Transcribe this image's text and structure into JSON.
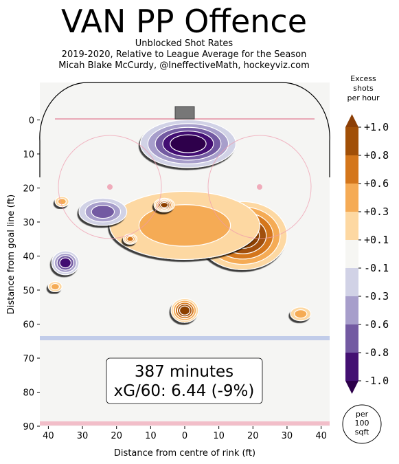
{
  "header": {
    "title": "VAN PP Offence",
    "subtitle1": "Unblocked Shot Rates",
    "subtitle2": "2019-2020, Relative to League Average for the Season",
    "subtitle3": "Micah Blake McCurdy, @IneffectiveMath, hockeyviz.com"
  },
  "annotation": {
    "minutes": "387 minutes",
    "xg": "xG/60: 6.44 (-9%)"
  },
  "colorbar": {
    "title_lines": [
      "Excess",
      "shots",
      "per hour"
    ],
    "tick_labels": [
      "+1.0",
      "+0.8",
      "+0.6",
      "+0.3",
      "+0.1",
      "-0.1",
      "-0.3",
      "-0.6",
      "-0.8",
      "-1.0"
    ],
    "colors": [
      "#8c3f06",
      "#a14f07",
      "#d4761b",
      "#f5ab55",
      "#fdd8a2",
      "#f6f6f3",
      "#d1d2e6",
      "#a79ecb",
      "#735aa2",
      "#431072",
      "#2d004b"
    ],
    "per_area_lines": [
      "per",
      "100",
      "sqft"
    ]
  },
  "chart_data": {
    "type": "heatmap",
    "xlabel": "Distance from centre of rink (ft)",
    "ylabel": "Distance from goal line (ft)",
    "xlim": [
      -42.5,
      42.5
    ],
    "ylim": [
      90,
      -11
    ],
    "xticks": [
      -40,
      -30,
      -20,
      -10,
      0,
      10,
      20,
      30,
      40
    ],
    "xtick_labels": [
      "40",
      "30",
      "20",
      "10",
      "0",
      "10",
      "20",
      "30",
      "40"
    ],
    "yticks": [
      0,
      10,
      20,
      30,
      40,
      50,
      60,
      70,
      80,
      90
    ],
    "ytick_labels": [
      "0",
      "10",
      "20",
      "30",
      "40",
      "50",
      "60",
      "70",
      "80",
      "90"
    ],
    "blobs": [
      {
        "x": 17,
        "y": 34,
        "rx": 13,
        "ry": 10,
        "value": 1.0
      },
      {
        "x": 0,
        "y": 31,
        "rx": 22,
        "ry": 10,
        "value": 0.3
      },
      {
        "x": -6,
        "y": 25,
        "rx": 3,
        "ry": 2,
        "value": 1.0
      },
      {
        "x": 0,
        "y": 56,
        "rx": 4,
        "ry": 3.5,
        "value": 1.0
      },
      {
        "x": -16,
        "y": 35,
        "rx": 2,
        "ry": 1.5,
        "value": 0.6
      },
      {
        "x": 1,
        "y": 7,
        "rx": 14,
        "ry": 7,
        "value": -1.0
      },
      {
        "x": -24,
        "y": 27,
        "rx": 7,
        "ry": 4,
        "value": -0.6
      },
      {
        "x": -35,
        "y": 42,
        "rx": 4,
        "ry": 3.5,
        "value": -0.8
      },
      {
        "x": -36,
        "y": 24,
        "rx": 2,
        "ry": 1.5,
        "value": 0.3
      },
      {
        "x": -38,
        "y": 49,
        "rx": 2,
        "ry": 1.5,
        "value": 0.3
      },
      {
        "x": 34,
        "y": 57,
        "rx": 3,
        "ry": 2,
        "value": 0.3
      }
    ],
    "grid": false
  }
}
